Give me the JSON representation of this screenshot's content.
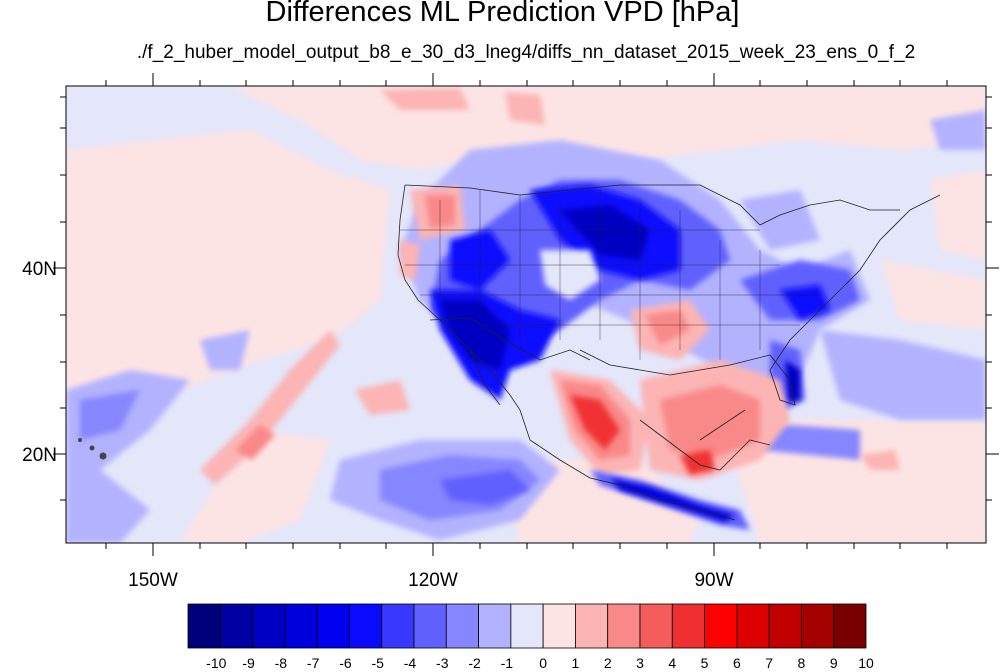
{
  "title": "Differences ML Prediction VPD [hPa]",
  "subtitle": "./f_2_huber_model_output_b8_e_30_d3_lneg4/diffs_nn_dataset_2015_week_23_ens_0_f_2",
  "axes": {
    "lon_labels": [
      "150W",
      "120W",
      "90W"
    ],
    "lat_labels": [
      "40N",
      "20N"
    ]
  },
  "colorbar": {
    "labels": [
      "-10",
      "-9",
      "-8",
      "-7",
      "-6",
      "-5",
      "-4",
      "-3",
      "-2",
      "-1",
      "0",
      "1",
      "2",
      "3",
      "4",
      "5",
      "6",
      "7",
      "8",
      "9",
      "10"
    ],
    "colors": [
      "#00007a",
      "#0000a3",
      "#0000c2",
      "#0000dc",
      "#0000f0",
      "#0a0aff",
      "#3838ff",
      "#6060ff",
      "#8686ff",
      "#b2b2ff",
      "#e4e6fa",
      "#fde4e4",
      "#fcb4b4",
      "#f98888",
      "#f55c5c",
      "#f03030",
      "#ff0000",
      "#dc0000",
      "#c00000",
      "#a40000",
      "#7a0000"
    ]
  }
}
